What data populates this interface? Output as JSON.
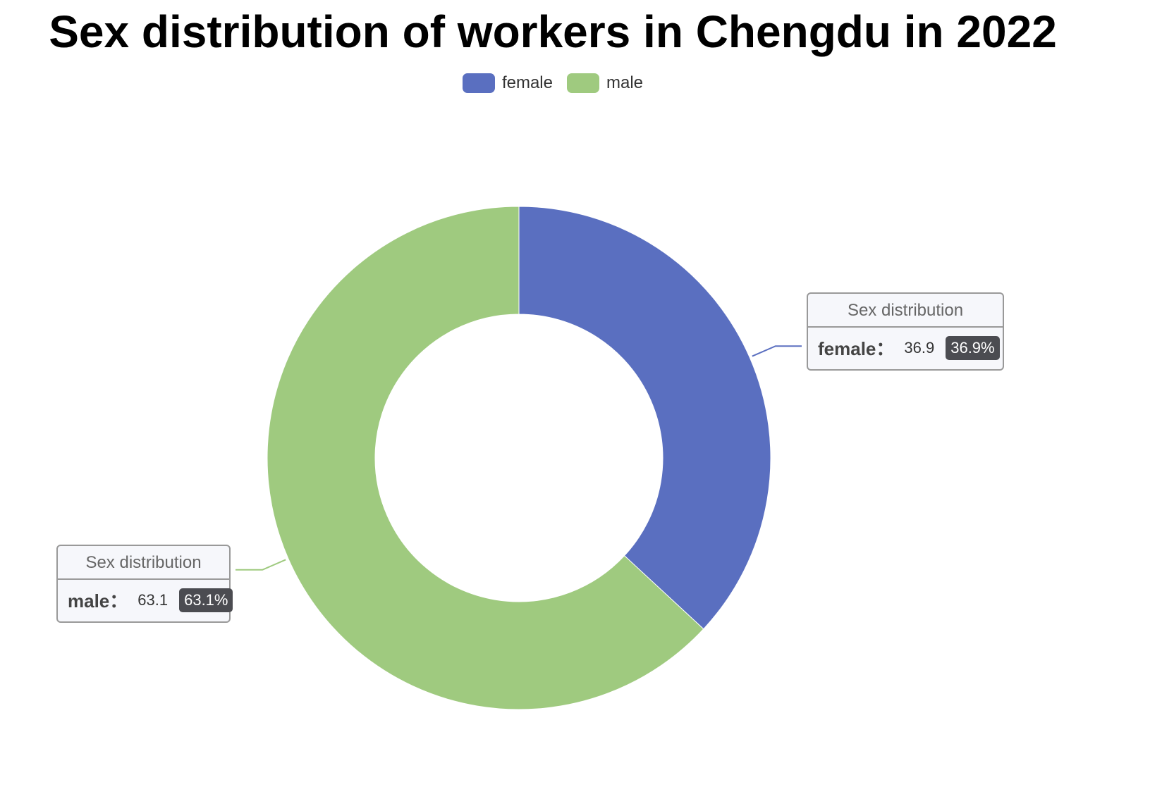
{
  "title": "Sex distribution of workers in Chengdu in 2022",
  "chart_data": {
    "type": "pie",
    "variant": "donut",
    "title": "Sex distribution of workers in Chengdu in 2022",
    "series_name": "Sex distribution",
    "legend_position": "top-center",
    "slices": [
      {
        "name": "female",
        "value": 36.9,
        "percent": "36.9%",
        "color": "#5a6fc0"
      },
      {
        "name": "male",
        "value": 63.1,
        "percent": "63.1%",
        "color": "#9fca7f"
      }
    ]
  },
  "labels": {
    "female": {
      "series": "Sex distribution",
      "name": "female：",
      "value": "36.9",
      "percent": "36.9%"
    },
    "male": {
      "series": "Sex distribution",
      "name": "male：",
      "value": "63.1",
      "percent": "63.1%"
    }
  }
}
